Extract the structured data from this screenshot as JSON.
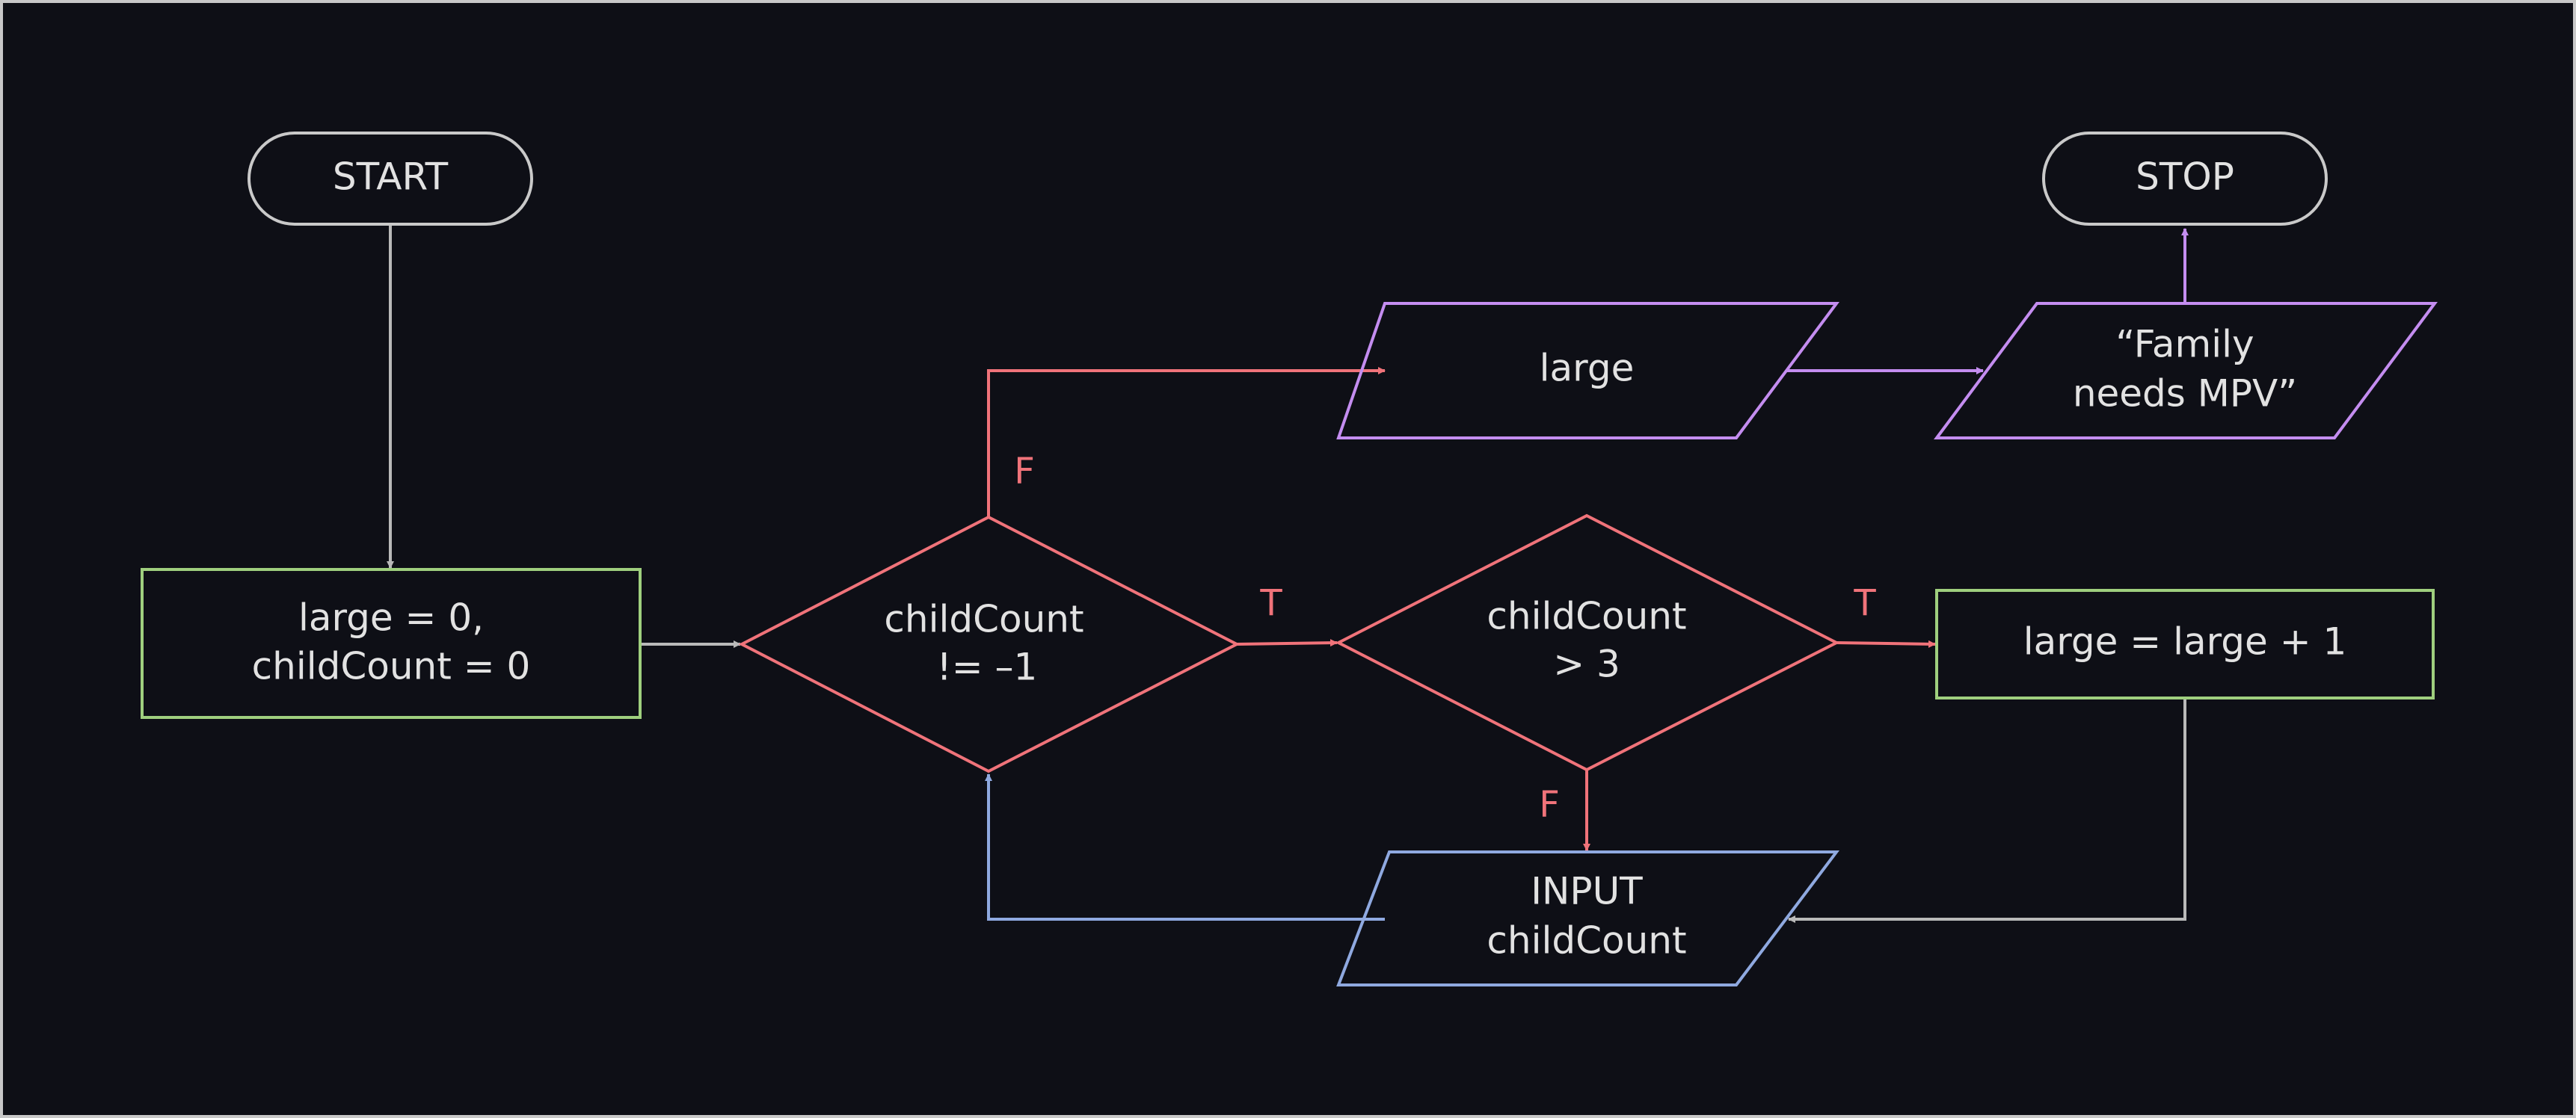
{
  "colors": {
    "background": "#0e0f16",
    "frame": "#c8c8c8",
    "terminal": "#c9c9c9",
    "process": "#9fcf7e",
    "decision": "#f0737a",
    "io_output": "#c48df0",
    "io_input": "#8fa9e0",
    "neutral_arrow": "#b9b9b9",
    "text": "#e2e2e2"
  },
  "nodes": {
    "start": {
      "label": "START"
    },
    "stop": {
      "label": "STOP"
    },
    "init": {
      "line1": "large = 0,",
      "line2": "childCount = 0"
    },
    "loop_test": {
      "line1": "childCount",
      "line2": "!= –1"
    },
    "count_test": {
      "line1": "childCount",
      "line2": "> 3"
    },
    "increment": {
      "label": "large = large + 1"
    },
    "output_large": {
      "label": "large"
    },
    "output_msg": {
      "line1": "“Family",
      "line2": "needs MPV”"
    },
    "input_count": {
      "line1": "INPUT",
      "line2": "childCount"
    }
  },
  "edge_labels": {
    "loop_false": "F",
    "loop_true": "T",
    "count_true": "T",
    "count_false": "F"
  }
}
